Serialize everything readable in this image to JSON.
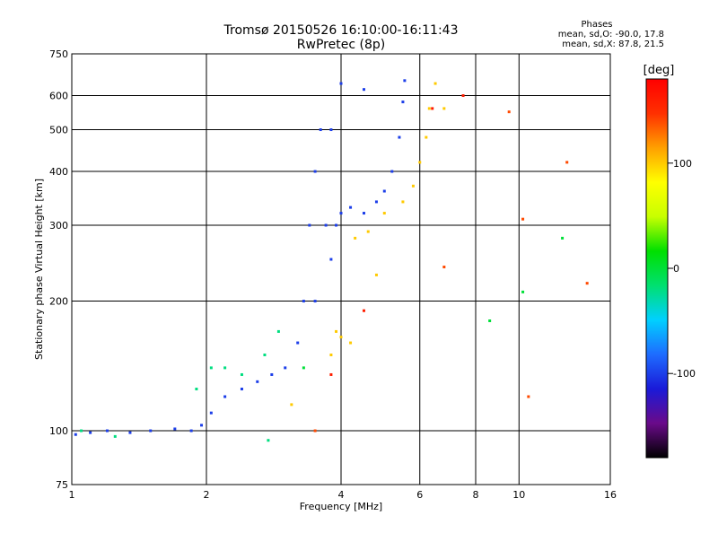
{
  "chart_data": {
    "type": "scatter",
    "title": "Tromsø 20150526 16:10:00-16:11:43",
    "subtitle": "RwPretec (8p)",
    "xlabel": "Frequency [MHz]",
    "ylabel": "Stationary phase Virtual Height [km]",
    "x_scale": "log",
    "y_scale": "log",
    "xlim": [
      1,
      16
    ],
    "ylim": [
      75,
      750
    ],
    "x_ticks": [
      1,
      2,
      4,
      6,
      8,
      10,
      16
    ],
    "y_ticks": [
      75,
      100,
      200,
      300,
      400,
      500,
      600,
      750
    ],
    "grid": true,
    "phases": {
      "heading": "Phases",
      "line_o": "mean, sd,O: -90.0, 17.8",
      "line_x": "mean, sd,X:  87.8, 21.5"
    },
    "colorbar": {
      "label": "[deg]",
      "range": [
        -180,
        180
      ],
      "ticks": [
        100,
        0,
        -100
      ],
      "colors": [
        "#000000",
        "#6a0a8a",
        "#1a1ad8",
        "#1e6cff",
        "#00d0ff",
        "#00e070",
        "#00e000",
        "#c8ff00",
        "#ffff00",
        "#ffa000",
        "#ff3000",
        "#ff0000"
      ]
    },
    "series": [
      {
        "phase": -100,
        "points": [
          [
            1.02,
            98
          ],
          [
            1.1,
            99
          ],
          [
            1.2,
            100
          ],
          [
            1.35,
            99
          ],
          [
            1.5,
            100
          ],
          [
            1.7,
            101
          ],
          [
            1.85,
            100
          ],
          [
            1.95,
            103
          ],
          [
            2.05,
            110
          ],
          [
            2.2,
            120
          ],
          [
            2.4,
            125
          ],
          [
            2.6,
            130
          ],
          [
            2.8,
            135
          ],
          [
            3.0,
            140
          ],
          [
            3.2,
            160
          ],
          [
            3.3,
            200
          ],
          [
            3.4,
            300
          ],
          [
            3.5,
            400
          ],
          [
            3.6,
            500
          ],
          [
            3.7,
            300
          ],
          [
            3.8,
            250
          ],
          [
            3.9,
            300
          ],
          [
            4.0,
            320
          ],
          [
            4.2,
            330
          ],
          [
            4.5,
            320
          ],
          [
            4.8,
            340
          ],
          [
            5.0,
            360
          ],
          [
            5.2,
            400
          ],
          [
            5.4,
            480
          ],
          [
            5.5,
            580
          ],
          [
            5.55,
            650
          ],
          [
            4.5,
            620
          ],
          [
            4.0,
            640
          ],
          [
            3.8,
            500
          ],
          [
            3.5,
            200
          ]
        ]
      },
      {
        "phase": 100,
        "points": [
          [
            3.1,
            115
          ],
          [
            3.8,
            150
          ],
          [
            3.9,
            170
          ],
          [
            4.0,
            165
          ],
          [
            4.2,
            160
          ],
          [
            4.3,
            280
          ],
          [
            4.6,
            290
          ],
          [
            4.8,
            230
          ],
          [
            5.0,
            320
          ],
          [
            5.5,
            340
          ],
          [
            5.8,
            370
          ],
          [
            6.0,
            420
          ],
          [
            6.2,
            480
          ],
          [
            6.3,
            560
          ],
          [
            6.5,
            640
          ],
          [
            6.8,
            560
          ]
        ]
      },
      {
        "phase": -20,
        "points": [
          [
            1.05,
            100
          ],
          [
            1.25,
            97
          ],
          [
            1.9,
            125
          ],
          [
            2.05,
            140
          ],
          [
            2.2,
            140
          ],
          [
            2.4,
            135
          ],
          [
            2.7,
            150
          ],
          [
            2.9,
            170
          ],
          [
            2.75,
            95
          ]
        ]
      },
      {
        "phase": 160,
        "points": [
          [
            3.8,
            135
          ],
          [
            4.5,
            190
          ],
          [
            6.4,
            560
          ],
          [
            7.5,
            600
          ]
        ]
      },
      {
        "phase": 0,
        "points": [
          [
            3.3,
            140
          ],
          [
            8.6,
            180
          ],
          [
            10.2,
            210
          ],
          [
            12.5,
            280
          ]
        ]
      },
      {
        "phase": 140,
        "points": [
          [
            3.5,
            100
          ],
          [
            6.8,
            240
          ],
          [
            9.5,
            550
          ],
          [
            10.2,
            310
          ],
          [
            10.5,
            120
          ],
          [
            12.8,
            420
          ],
          [
            14.2,
            220
          ]
        ]
      }
    ]
  }
}
